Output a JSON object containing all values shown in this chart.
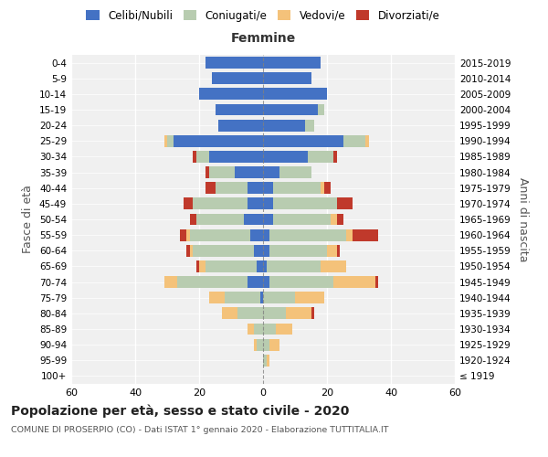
{
  "age_groups": [
    "100+",
    "95-99",
    "90-94",
    "85-89",
    "80-84",
    "75-79",
    "70-74",
    "65-69",
    "60-64",
    "55-59",
    "50-54",
    "45-49",
    "40-44",
    "35-39",
    "30-34",
    "25-29",
    "20-24",
    "15-19",
    "10-14",
    "5-9",
    "0-4"
  ],
  "birth_years": [
    "≤ 1919",
    "1920-1924",
    "1925-1929",
    "1930-1934",
    "1935-1939",
    "1940-1944",
    "1945-1949",
    "1950-1954",
    "1955-1959",
    "1960-1964",
    "1965-1969",
    "1970-1974",
    "1975-1979",
    "1980-1984",
    "1985-1989",
    "1990-1994",
    "1995-1999",
    "2000-2004",
    "2005-2009",
    "2010-2014",
    "2015-2019"
  ],
  "males": {
    "celibi": [
      0,
      0,
      0,
      0,
      0,
      1,
      5,
      2,
      3,
      4,
      6,
      5,
      5,
      9,
      17,
      28,
      14,
      15,
      20,
      16,
      18
    ],
    "coniugati": [
      0,
      0,
      2,
      3,
      8,
      11,
      22,
      16,
      19,
      19,
      15,
      17,
      10,
      8,
      4,
      2,
      0,
      0,
      0,
      0,
      0
    ],
    "vedovi": [
      0,
      0,
      1,
      2,
      5,
      5,
      4,
      2,
      1,
      1,
      0,
      0,
      0,
      0,
      0,
      1,
      0,
      0,
      0,
      0,
      0
    ],
    "divorziati": [
      0,
      0,
      0,
      0,
      0,
      0,
      0,
      1,
      1,
      2,
      2,
      3,
      3,
      1,
      1,
      0,
      0,
      0,
      0,
      0,
      0
    ]
  },
  "females": {
    "nubili": [
      0,
      0,
      0,
      0,
      0,
      0,
      2,
      1,
      2,
      2,
      3,
      3,
      3,
      5,
      14,
      25,
      13,
      17,
      20,
      15,
      18
    ],
    "coniugate": [
      0,
      1,
      2,
      4,
      7,
      10,
      20,
      17,
      18,
      24,
      18,
      20,
      15,
      10,
      8,
      7,
      3,
      2,
      0,
      0,
      0
    ],
    "vedove": [
      0,
      1,
      3,
      5,
      8,
      9,
      13,
      8,
      3,
      2,
      2,
      0,
      1,
      0,
      0,
      1,
      0,
      0,
      0,
      0,
      0
    ],
    "divorziate": [
      0,
      0,
      0,
      0,
      1,
      0,
      1,
      0,
      1,
      8,
      2,
      5,
      2,
      0,
      1,
      0,
      0,
      0,
      0,
      0,
      0
    ]
  },
  "colors": {
    "celibi": "#4472C4",
    "coniugati": "#B8CCB0",
    "vedovi": "#F4C27A",
    "divorziati": "#C0392B"
  },
  "xlim": 60,
  "title": "Popolazione per età, sesso e stato civile - 2020",
  "subtitle": "COMUNE DI PROSERPIO (CO) - Dati ISTAT 1° gennaio 2020 - Elaborazione TUTTITALIA.IT",
  "ylabel_left": "Fasce di età",
  "ylabel_right": "Anni di nascita",
  "xlabel_femmine": "Femmine",
  "bg_color": "#f0f0f0"
}
